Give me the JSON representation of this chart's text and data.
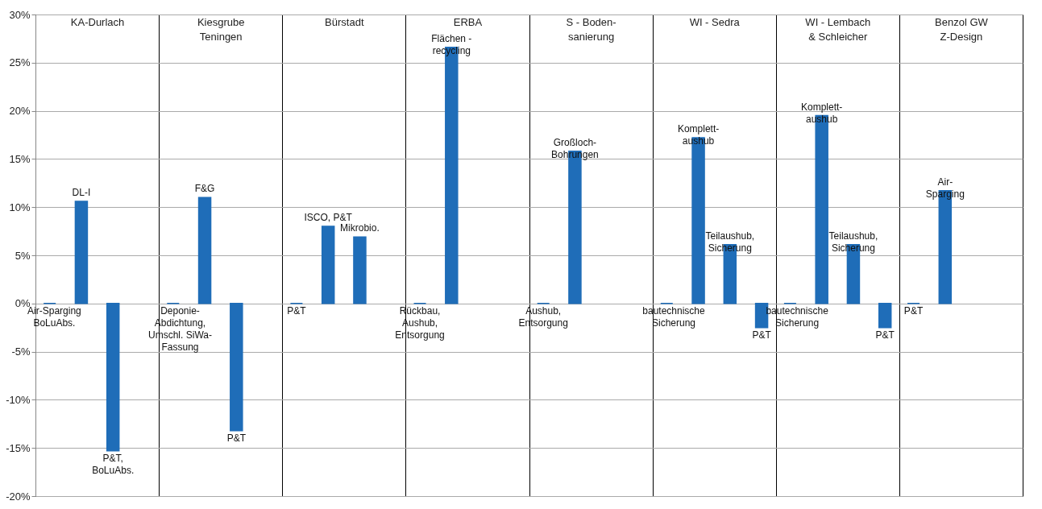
{
  "chart_data": {
    "type": "bar",
    "categories": [
      "KA-Durlach",
      "Kiesgrube\nTeningen",
      "Bürstadt",
      "ERBA",
      "S -  Boden-\nsanierung",
      "WI - Sedra",
      "WI - Lembach\n& Schleicher",
      "Benzol GW\nZ-Design"
    ],
    "series": [
      {
        "color": "#1f6db8",
        "values": [
          0,
          0,
          0,
          0,
          0,
          0,
          0,
          0
        ],
        "value_labels": [
          "Air-Sparging\nBoLuAbs.",
          "Deponie-\nAbdichtung,\nUmschl. SiWa-\nFassung",
          "P&T",
          "Rückbau,\nAushub,\nEntsorgung",
          "Aushub,\nEntsorgung",
          "bautechnische\nSicherung",
          "bautechnische\nSicherung",
          "P&T"
        ]
      },
      {
        "color": "#1f6db8",
        "values": [
          10.6,
          11,
          8,
          26.6,
          15.8,
          17.2,
          19.5,
          11.7
        ],
        "value_labels": [
          "DL-I",
          "F&G",
          "ISCO, P&T",
          "Flächen -\nrecycling",
          "Großloch-\nBohrungen",
          "Komplett-\naushub",
          "Komplett-\naushub",
          "Air-\nSparging"
        ]
      },
      {
        "color": "#1f6db8",
        "values": [
          -15.3,
          -13.2,
          6.9,
          null,
          null,
          6.1,
          6.1,
          null
        ],
        "value_labels": [
          "P&T,\nBoLuAbs.",
          "P&T",
          "Mikrobio.",
          null,
          null,
          "Teilaushub,\nSicherung",
          "Teilaushub,\nSicherung",
          null
        ]
      },
      {
        "color": "#1f6db8",
        "values": [
          null,
          null,
          null,
          null,
          null,
          -2.5,
          -2.5,
          null
        ],
        "value_labels": [
          null,
          null,
          null,
          null,
          null,
          "P&T",
          "P&T",
          null
        ]
      }
    ],
    "ylim": [
      -20,
      30
    ],
    "yticks": [
      {
        "value": -20,
        "label": "-20%"
      },
      {
        "value": -15,
        "label": "-15%"
      },
      {
        "value": -10,
        "label": "-10%"
      },
      {
        "value": -5,
        "label": "-5%"
      },
      {
        "value": 0,
        "label": "0%"
      },
      {
        "value": 5,
        "label": "5%"
      },
      {
        "value": 10,
        "label": "10%"
      },
      {
        "value": 15,
        "label": "15%"
      },
      {
        "value": 20,
        "label": "20%"
      },
      {
        "value": 25,
        "label": "25%"
      },
      {
        "value": 30,
        "label": "30%"
      }
    ],
    "grid": true
  }
}
